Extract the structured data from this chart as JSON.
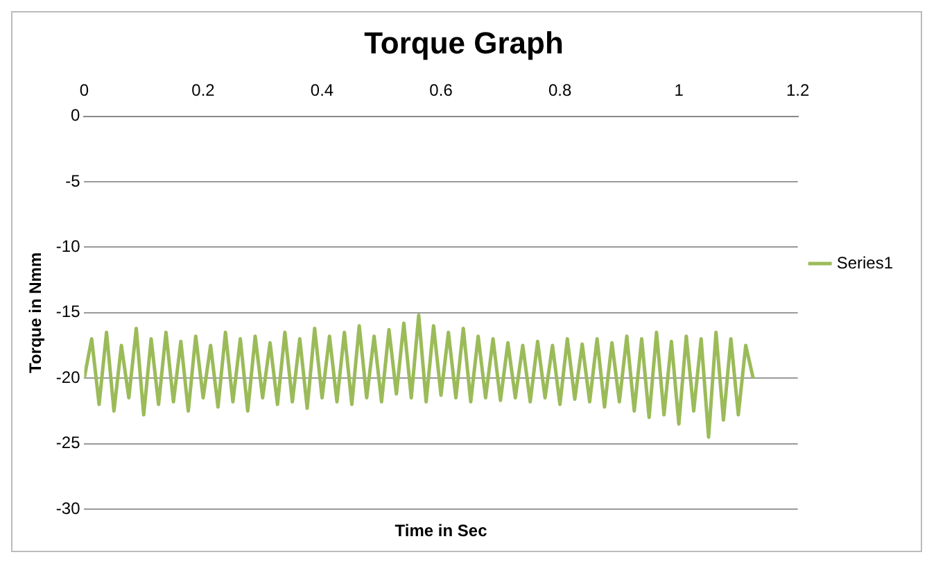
{
  "chart_data": {
    "type": "line",
    "title": "Torque Graph",
    "xlabel": "Time in Sec",
    "ylabel": "Torque in Nmm",
    "xlim": [
      0,
      1.2
    ],
    "xticks": [
      0,
      0.2,
      0.4,
      0.6,
      0.8,
      1,
      1.2
    ],
    "ylim": [
      -30,
      0
    ],
    "yticks": [
      -30,
      -25,
      -20,
      -15,
      -10,
      -5,
      0
    ],
    "grid": "y",
    "legend": "right",
    "marker": "none",
    "line_style": "solid",
    "series": [
      {
        "name": "Series1",
        "color": "#9bbb59",
        "x": [
          0,
          0.0125,
          0.025,
          0.0375,
          0.05,
          0.0625,
          0.075,
          0.0875,
          0.1,
          0.1125,
          0.125,
          0.1375,
          0.15,
          0.1625,
          0.175,
          0.1875,
          0.2,
          0.2125,
          0.225,
          0.2375,
          0.25,
          0.2625,
          0.275,
          0.2875,
          0.3,
          0.3125,
          0.325,
          0.3375,
          0.35,
          0.3625,
          0.375,
          0.3875,
          0.4,
          0.4125,
          0.425,
          0.4375,
          0.45,
          0.4625,
          0.475,
          0.4875,
          0.5,
          0.5125,
          0.525,
          0.5375,
          0.55,
          0.5625,
          0.575,
          0.5875,
          0.6,
          0.6125,
          0.625,
          0.6375,
          0.65,
          0.6625,
          0.675,
          0.6875,
          0.7,
          0.7125,
          0.725,
          0.7375,
          0.75,
          0.7625,
          0.775,
          0.7875,
          0.8,
          0.8125,
          0.825,
          0.8375,
          0.85,
          0.8625,
          0.875,
          0.8875,
          0.9,
          0.9125,
          0.925,
          0.9375,
          0.95,
          0.9625,
          0.975,
          0.9875,
          1,
          1.0125,
          1.025,
          1.0375,
          1.05,
          1.0625,
          1.075,
          1.0875,
          1.1,
          1.1125,
          1.125
        ],
        "values": [
          -20,
          -17,
          -22,
          -16.5,
          -22.5,
          -17.5,
          -21.5,
          -16.2,
          -22.8,
          -17,
          -22,
          -16.5,
          -21.8,
          -17.2,
          -22.5,
          -16.8,
          -21.5,
          -17.5,
          -22.2,
          -16.5,
          -21.8,
          -17,
          -22.5,
          -16.8,
          -21.5,
          -17.3,
          -22,
          -16.5,
          -21.8,
          -17,
          -22.3,
          -16.2,
          -21.5,
          -16.8,
          -21.8,
          -16.5,
          -22,
          -16,
          -21.5,
          -16.8,
          -21.8,
          -16.3,
          -21.2,
          -15.8,
          -21.5,
          -15.2,
          -21.8,
          -16,
          -21.3,
          -16.5,
          -21.5,
          -16.2,
          -21.8,
          -16.8,
          -21.5,
          -17,
          -21.7,
          -17.3,
          -21.5,
          -17.5,
          -21.8,
          -17.2,
          -21.5,
          -17.5,
          -22,
          -17,
          -21.6,
          -17.4,
          -21.8,
          -17,
          -22.2,
          -17.3,
          -21.8,
          -16.8,
          -22.5,
          -17,
          -23,
          -16.5,
          -22.8,
          -17.2,
          -23.5,
          -16.8,
          -22.5,
          -17,
          -24.5,
          -16.5,
          -23.2,
          -17,
          -22.8,
          -17.5,
          -20
        ]
      }
    ]
  }
}
